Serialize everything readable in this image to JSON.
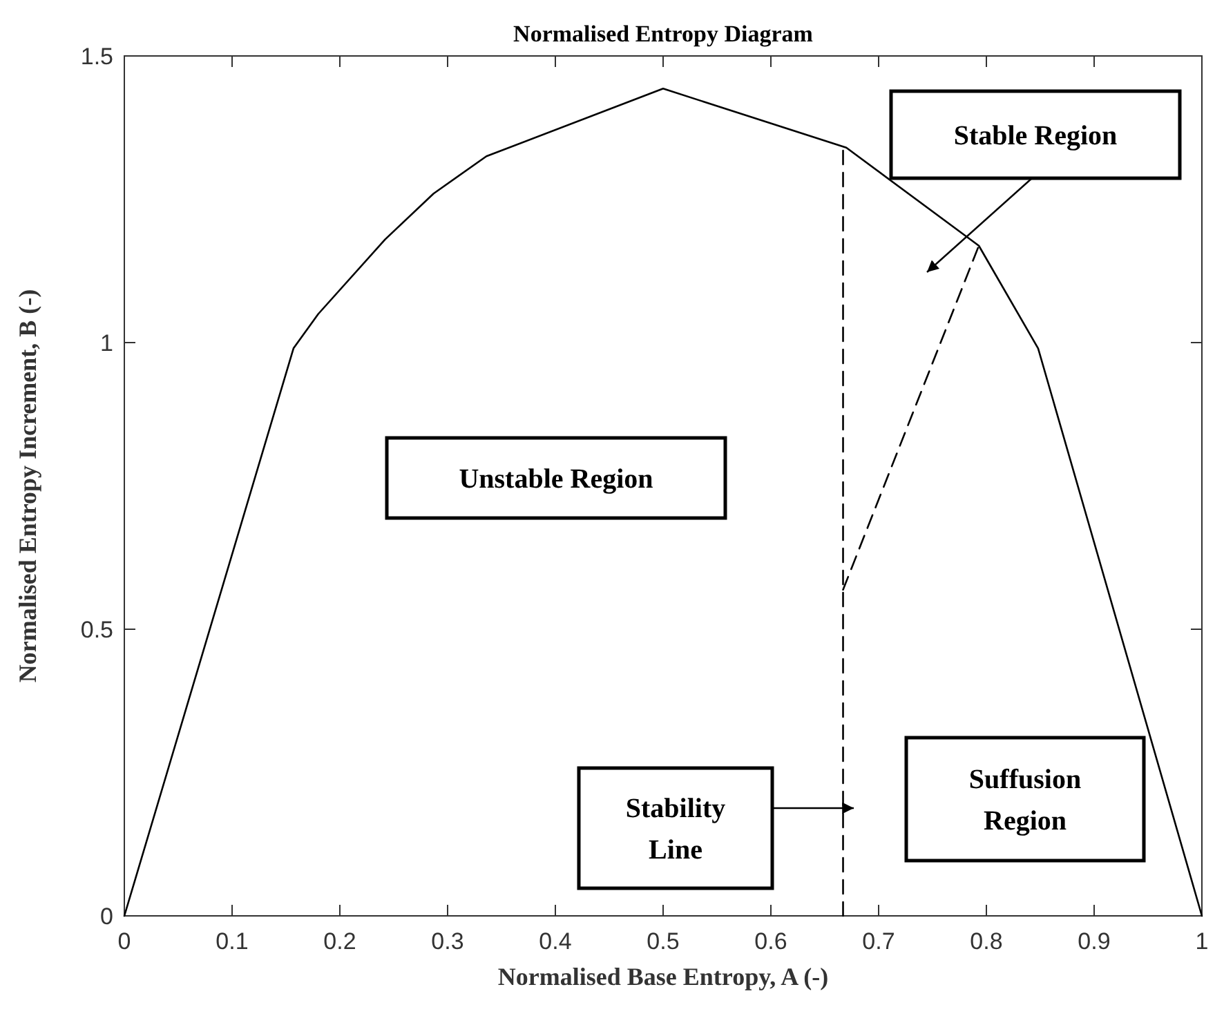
{
  "chart_data": {
    "type": "line",
    "title": "Normalised Entropy Diagram",
    "xlabel": "Normalised Base Entropy, A (-)",
    "ylabel": "Normalised Entropy Increment, B (-)",
    "series": [
      {
        "color": "#000000",
        "x": [
          0,
          0.157,
          0.18,
          0.242,
          0.287,
          0.336,
          0.5,
          0.67,
          0.793,
          0.848,
          1
        ],
        "values": [
          0,
          0.99,
          1.05,
          1.18,
          1.26,
          1.325,
          1.443,
          1.34,
          1.169,
          0.99,
          0
        ],
        "line_style": "solid"
      },
      {
        "color": "#000000",
        "x": [
          0.667,
          0.667
        ],
        "values": [
          0,
          1.337
        ],
        "line_style": "dashed"
      },
      {
        "color": "#000000",
        "x": [
          0.667,
          0.793
        ],
        "values": [
          0.569,
          1.169
        ],
        "line_style": "dashed"
      }
    ],
    "xlim": [
      0,
      1
    ],
    "ylim": [
      0,
      1.5
    ],
    "xticks": [
      0,
      0.1,
      0.2,
      0.3,
      0.4,
      0.5,
      0.6,
      0.7,
      0.8,
      0.9,
      1
    ],
    "yticks": [
      0,
      0.5,
      1,
      1.5
    ],
    "grid": false,
    "marker": "none",
    "annotations": [
      "Stable Region",
      "Unstable Region",
      "Stability Line",
      "Suffusion Region"
    ]
  }
}
